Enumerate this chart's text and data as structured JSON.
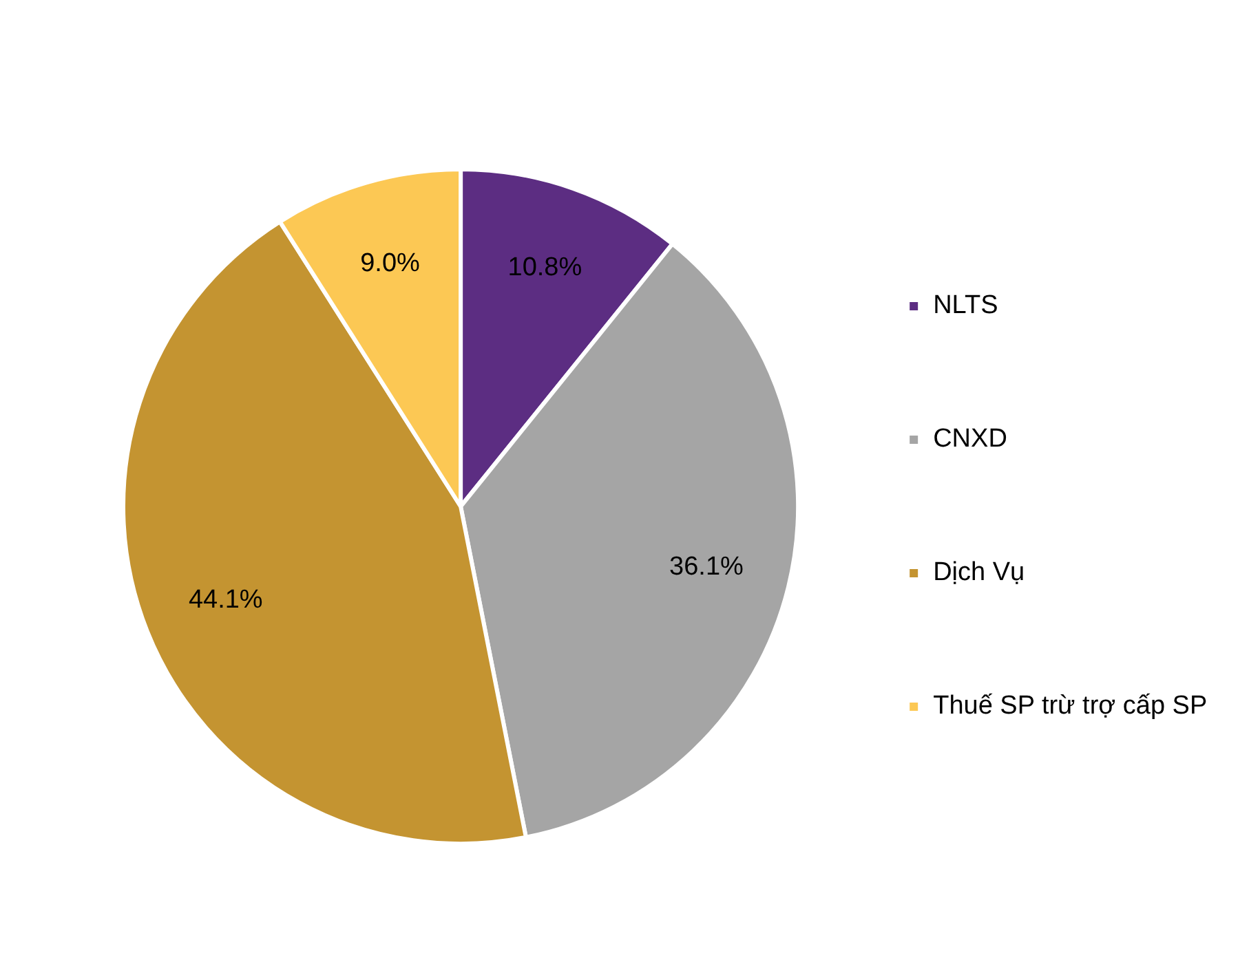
{
  "chart_data": {
    "type": "pie",
    "categories": [
      "NLTS",
      "CNXD",
      "Dịch Vụ",
      "Thuế SP trừ trợ cấp SP"
    ],
    "values": [
      10.8,
      36.1,
      44.1,
      9.0
    ],
    "value_labels": [
      "10.8%",
      "36.1%",
      "44.1%",
      "9.0%"
    ],
    "colors": [
      "#5c2d82",
      "#a5a5a5",
      "#c49431",
      "#fcc854"
    ],
    "legend": "right"
  }
}
